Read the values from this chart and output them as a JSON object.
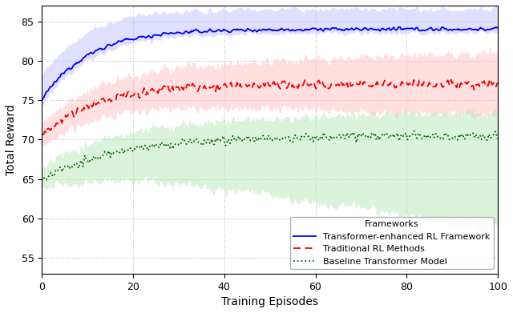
{
  "xlabel": "Training Episodes",
  "ylabel": "Total Reward",
  "legend_title": "Frameworks",
  "xlim": [
    0,
    100
  ],
  "ylim": [
    53,
    87
  ],
  "yticks": [
    55,
    60,
    65,
    70,
    75,
    80,
    85
  ],
  "xticks": [
    0,
    20,
    40,
    60,
    80,
    100
  ],
  "blue_color": "#0000ee",
  "blue_fill_color": "#c0c0ff",
  "red_color": "#ee0000",
  "red_fill_color": "#ffc0c0",
  "green_color": "#006600",
  "green_fill_color": "#b8e8b8",
  "line1_label": "Transformer-enhanced RL Framework",
  "line2_label": "Traditional RL Methods",
  "line3_label": "Baseline Transformer Model",
  "figsize": [
    6.4,
    3.91
  ],
  "dpi": 100
}
